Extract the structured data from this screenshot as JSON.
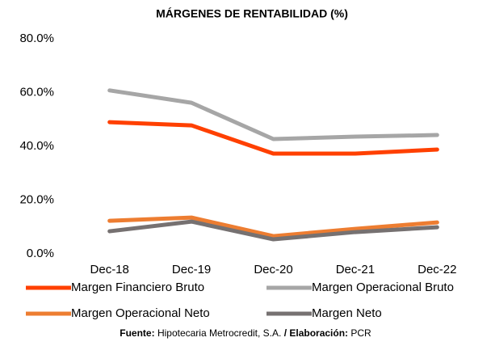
{
  "chart_data": {
    "type": "line",
    "title": "MÁRGENES DE RENTABILIDAD (%)",
    "categories": [
      "Dec-18",
      "Dec-19",
      "Dec-20",
      "Dec-21",
      "Dec-22"
    ],
    "series": [
      {
        "name": "Margen Financiero Bruto",
        "color": "#ff4000",
        "values": [
          49.0,
          47.8,
          37.3,
          37.3,
          38.8
        ]
      },
      {
        "name": "Margen Operacional Bruto",
        "color": "#a6a6a6",
        "values": [
          60.8,
          56.2,
          42.7,
          43.6,
          44.2
        ]
      },
      {
        "name": "Margen Operacional Neto",
        "color": "#ed7d31",
        "values": [
          12.3,
          13.5,
          6.6,
          9.3,
          11.7
        ]
      },
      {
        "name": "Margen Neto",
        "color": "#767171",
        "values": [
          8.4,
          12.0,
          5.4,
          8.1,
          9.9
        ]
      }
    ],
    "ylim": [
      0,
      80
    ],
    "yticks": [
      {
        "value": 0,
        "label": "0.0%"
      },
      {
        "value": 20,
        "label": "20.0%"
      },
      {
        "value": 40,
        "label": "40.0%"
      },
      {
        "value": 60,
        "label": "60.0%"
      },
      {
        "value": 80,
        "label": "80.0%"
      }
    ],
    "grid": false,
    "source": {
      "label1": "Fuente:",
      "text1": "Hipotecaria Metrocredit, S.A.",
      "label2": "/ Elaboración:",
      "text2": "PCR"
    }
  }
}
